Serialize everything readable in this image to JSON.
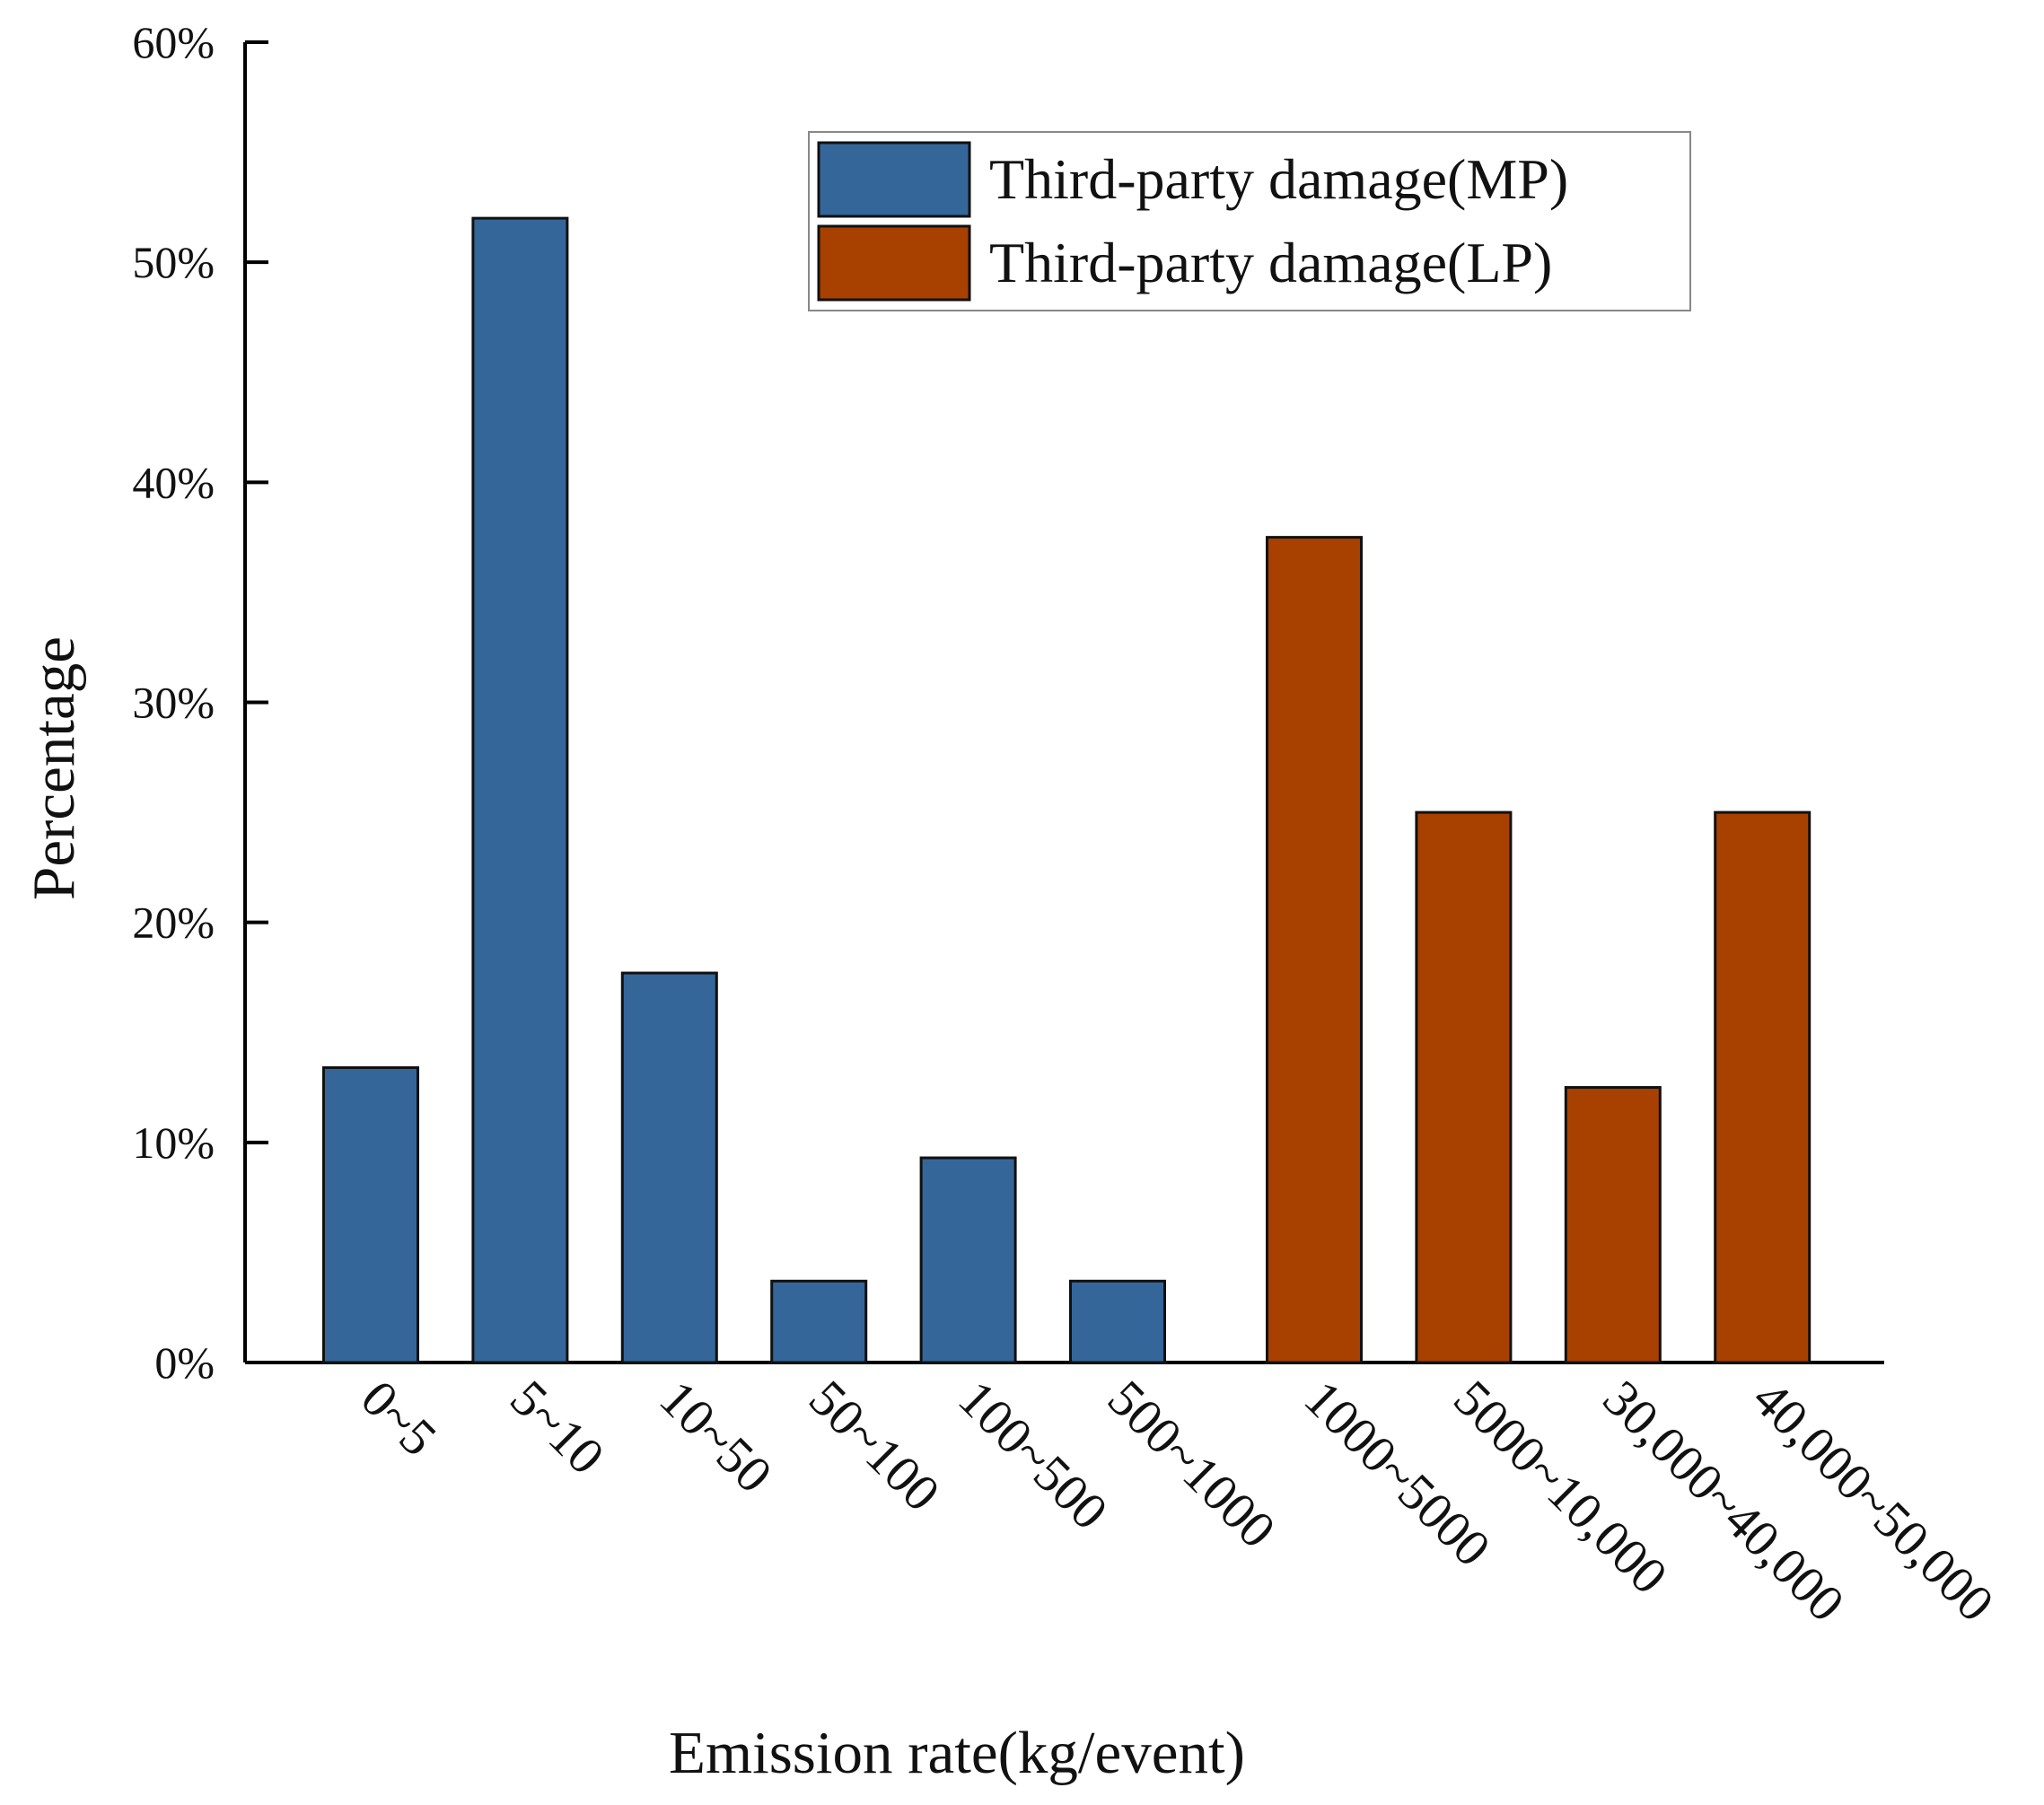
{
  "chart_data": {
    "type": "bar",
    "xlabel": "Emission rate(kg/event)",
    "ylabel": "Percentage",
    "categories": [
      "0~5",
      "5~10",
      "10~50",
      "50~100",
      "100~500",
      "500~1000",
      "1000~5000",
      "5000~10,000",
      "30,000~40,000",
      "40,000~50,000"
    ],
    "series": [
      {
        "name": "Third-party damage(MP)",
        "color": "#34669a",
        "values": [
          13.4,
          52.0,
          17.7,
          3.7,
          9.3,
          3.7,
          null,
          null,
          null,
          null
        ]
      },
      {
        "name": "Third-party damage(LP)",
        "color": "#a84000",
        "values": [
          null,
          null,
          null,
          null,
          null,
          null,
          37.5,
          25,
          12.5,
          25
        ]
      }
    ],
    "ylim": [
      0,
      60
    ],
    "yticks": [
      {
        "value": 0,
        "label": "0%"
      },
      {
        "value": 10,
        "label": "10%"
      },
      {
        "value": 20,
        "label": "20%"
      },
      {
        "value": 30,
        "label": "30%"
      },
      {
        "value": 40,
        "label": "40%"
      },
      {
        "value": 50,
        "label": "50%"
      },
      {
        "value": 60,
        "label": "60%"
      }
    ],
    "legend": "upper right"
  }
}
